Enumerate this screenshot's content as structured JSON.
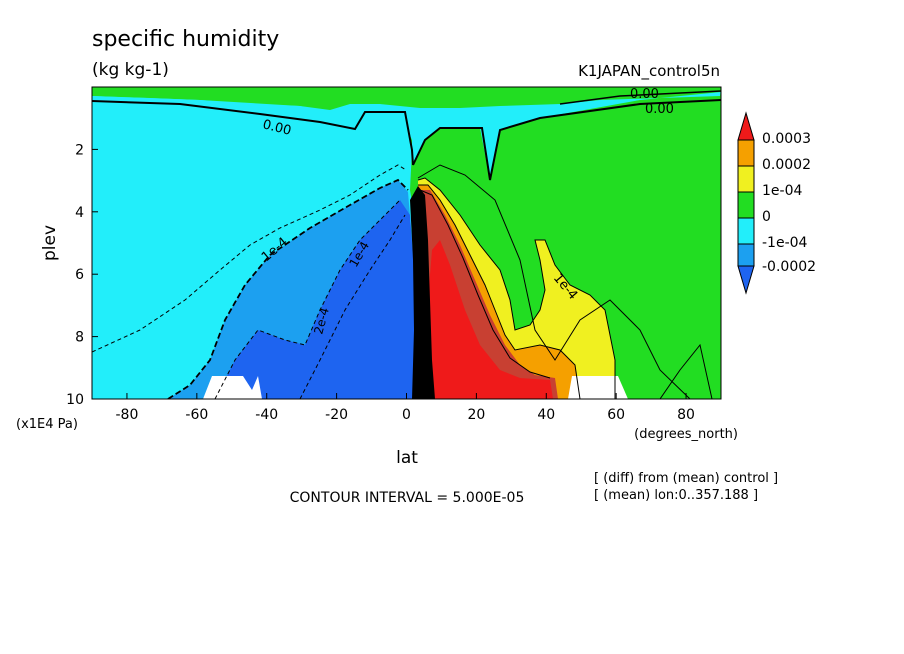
{
  "chart_data": {
    "type": "contour",
    "title": "specific humidity",
    "units": "(kg kg-1)",
    "subtitle_right": "K1JAPAN_control5n",
    "xlabel": "lat",
    "x_units": "(degrees_north)",
    "ylabel": "plev",
    "y_units": "(x1E4 Pa)",
    "xlim": [
      -90,
      90
    ],
    "ylim": [
      10,
      0
    ],
    "xticks": [
      "-80",
      "-60",
      "-40",
      "-20",
      "0",
      "20",
      "40",
      "60",
      "80"
    ],
    "yticks": [
      "2",
      "4",
      "6",
      "8",
      "10"
    ],
    "contour_interval": "CONTOUR INTERVAL = 5.000E-05",
    "notes": [
      "[ (diff) from (mean) control ]",
      "[ (mean) lon:0..357.188 ]"
    ],
    "contour_labels": [
      "0.00",
      "0.00",
      "0.00",
      "1e-4",
      "1e-4",
      "1e-4",
      "2e-4"
    ],
    "colorbar": {
      "labels": [
        "0.0003",
        "0.0002",
        "1e-04",
        "0",
        "-1e-04",
        "-0.0002"
      ],
      "colors": [
        "#ef1a1a",
        "#f5a000",
        "#f0f020",
        "#22dd22",
        "#22eefa",
        "#1ca0f0",
        "#1e64f0"
      ]
    }
  }
}
